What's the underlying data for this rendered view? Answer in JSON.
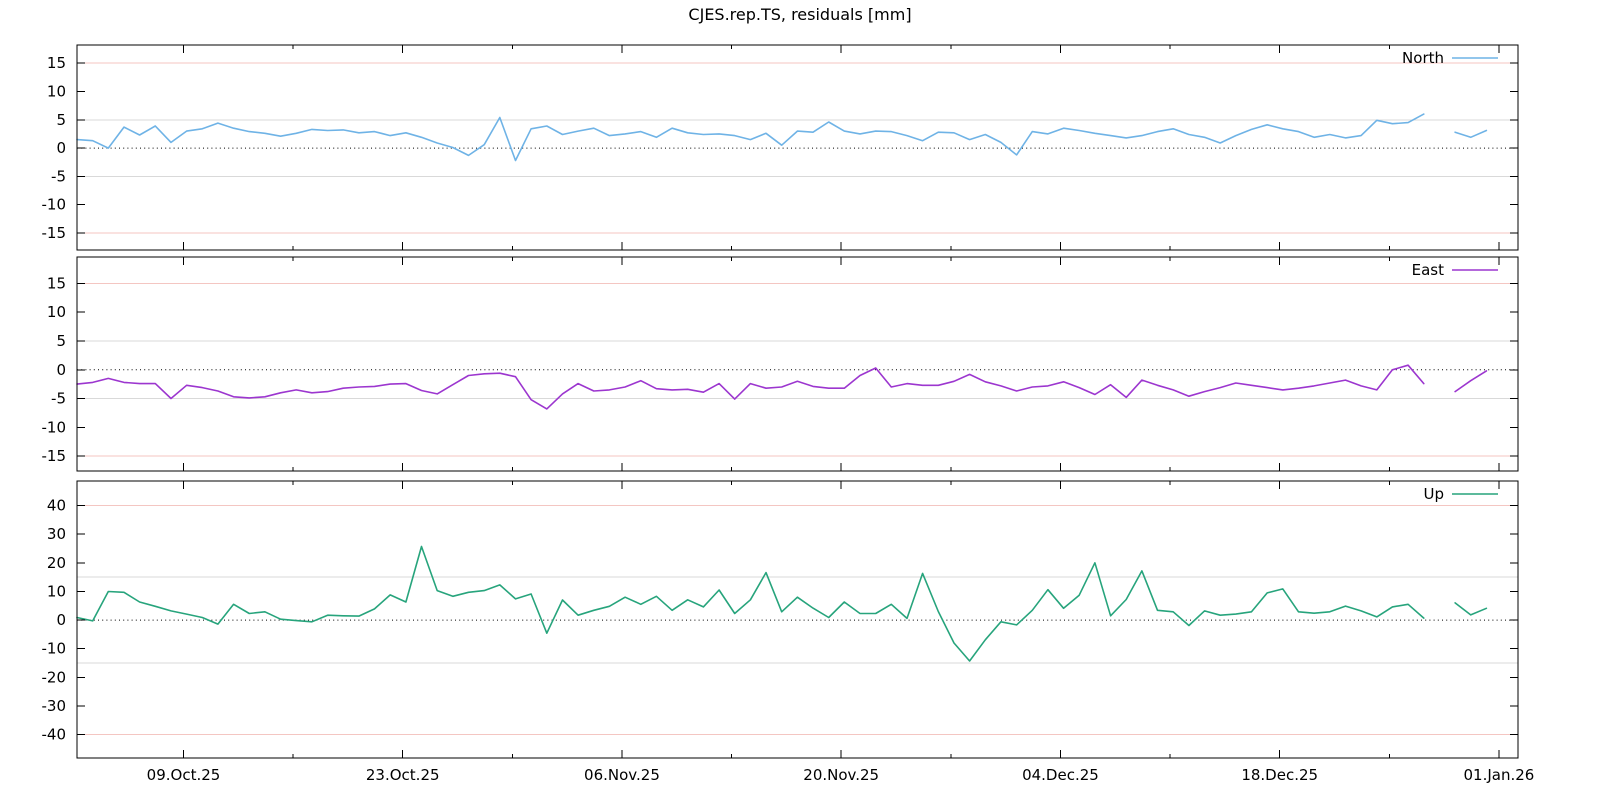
{
  "title": "CJES.rep.TS, residuals [mm]",
  "chart_data": {
    "type": "line",
    "title": "CJES.rep.TS, residuals [mm]",
    "xlabel": "",
    "ylabel": "residuals [mm]",
    "legend_position": "top-right-inside",
    "grid": "horizontal-only",
    "grid_colors": {
      "outer": "#f4c6c2",
      "inner": "#d9d9d9",
      "zero": "#000000"
    },
    "x_axis": {
      "tick_labels": [
        "09.Oct.25",
        "23.Oct.25",
        "06.Nov.25",
        "20.Nov.25",
        "04.Dec.25",
        "18.Dec.25",
        "01.Jan.26"
      ],
      "major_days": [
        6.8,
        20.8,
        34.8,
        48.8,
        62.8,
        76.8,
        90.8
      ],
      "minor_days": [
        13.8,
        27.8,
        41.8,
        55.8,
        69.8,
        83.8
      ],
      "sampling": "daily",
      "gap_day_index": 87
    },
    "panels": [
      {
        "name": "North",
        "color": "#6fb3e6",
        "ylim": [
          -18.0,
          18.2
        ],
        "yticks": [
          -15,
          -10,
          -5,
          0,
          5,
          10,
          15
        ],
        "grid_outer": 15,
        "grid_inner": 5,
        "values": [
          1.5,
          1.3,
          0.0,
          3.7,
          2.3,
          3.9,
          1.0,
          3.0,
          3.4,
          4.4,
          3.5,
          2.9,
          2.6,
          2.1,
          2.6,
          3.3,
          3.1,
          3.2,
          2.7,
          2.9,
          2.2,
          2.7,
          1.9,
          0.9,
          0.1,
          -1.3,
          0.6,
          5.4,
          -2.2,
          3.4,
          3.9,
          2.4,
          3.0,
          3.5,
          2.2,
          2.5,
          2.9,
          1.9,
          3.5,
          2.7,
          2.4,
          2.5,
          2.2,
          1.5,
          2.6,
          0.5,
          3.0,
          2.8,
          4.6,
          3.0,
          2.5,
          3.0,
          2.9,
          2.2,
          1.3,
          2.8,
          2.7,
          1.5,
          2.4,
          1.0,
          -1.2,
          2.9,
          2.5,
          3.5,
          3.1,
          2.6,
          2.2,
          1.8,
          2.2,
          2.9,
          3.4,
          2.4,
          1.9,
          0.9,
          2.2,
          3.3,
          4.1,
          3.4,
          2.9,
          1.9,
          2.4,
          1.8,
          2.2,
          4.9,
          4.3,
          4.5,
          6.0,
          null,
          2.8,
          1.9,
          3.1
        ]
      },
      {
        "name": "East",
        "color": "#9c36cf",
        "ylim": [
          -17.6,
          19.6
        ],
        "yticks": [
          -15,
          -10,
          -5,
          0,
          5,
          10,
          15
        ],
        "grid_outer": 15,
        "grid_inner": 5,
        "values": [
          -2.5,
          -2.2,
          -1.5,
          -2.2,
          -2.4,
          -2.4,
          -5.0,
          -2.7,
          -3.1,
          -3.7,
          -4.7,
          -4.9,
          -4.7,
          -4.0,
          -3.5,
          -4.0,
          -3.8,
          -3.2,
          -3.0,
          -2.9,
          -2.5,
          -2.4,
          -3.6,
          -4.2,
          -2.6,
          -1.0,
          -0.7,
          -0.6,
          -1.2,
          -5.2,
          -6.8,
          -4.2,
          -2.4,
          -3.7,
          -3.5,
          -3.0,
          -1.9,
          -3.3,
          -3.5,
          -3.4,
          -3.9,
          -2.4,
          -5.1,
          -2.4,
          -3.2,
          -3.0,
          -2.0,
          -2.9,
          -3.2,
          -3.2,
          -1.0,
          0.3,
          -3.0,
          -2.4,
          -2.7,
          -2.7,
          -2.0,
          -0.8,
          -2.1,
          -2.8,
          -3.7,
          -3.0,
          -2.8,
          -2.1,
          -3.1,
          -4.3,
          -2.6,
          -4.8,
          -1.8,
          -2.7,
          -3.5,
          -4.6,
          -3.8,
          -3.1,
          -2.3,
          -2.7,
          -3.1,
          -3.5,
          -3.2,
          -2.8,
          -2.3,
          -1.8,
          -2.8,
          -3.5,
          0.0,
          0.8,
          -2.4,
          null,
          -3.8,
          -1.9,
          -0.2
        ]
      },
      {
        "name": "Up",
        "color": "#27a47c",
        "ylim": [
          -48.2,
          48.6
        ],
        "yticks": [
          -40,
          -30,
          -20,
          -10,
          0,
          10,
          20,
          30,
          40
        ],
        "grid_outer": 40,
        "grid_inner": 15,
        "values": [
          0.9,
          -0.3,
          10.0,
          9.7,
          6.3,
          4.8,
          3.2,
          2.1,
          0.9,
          -1.4,
          5.5,
          2.3,
          2.9,
          0.3,
          -0.2,
          -0.6,
          1.7,
          1.5,
          1.4,
          3.9,
          8.8,
          6.3,
          25.7,
          10.3,
          8.3,
          9.7,
          10.3,
          12.3,
          7.4,
          9.1,
          -4.6,
          7.0,
          1.7,
          3.4,
          4.8,
          8.0,
          5.5,
          8.3,
          3.4,
          7.1,
          4.6,
          10.5,
          2.3,
          7.1,
          16.6,
          2.9,
          8.0,
          4.2,
          0.9,
          6.3,
          2.3,
          2.3,
          5.5,
          0.6,
          16.3,
          3.0,
          -8.0,
          -14.3,
          -6.9,
          -0.6,
          -1.7,
          3.4,
          10.6,
          4.1,
          8.7,
          20.0,
          1.5,
          7.2,
          17.2,
          3.4,
          2.9,
          -1.9,
          3.2,
          1.7,
          2.1,
          2.9,
          9.5,
          10.9,
          2.9,
          2.4,
          2.9,
          4.9,
          3.2,
          1.1,
          4.6,
          5.5,
          0.7,
          null,
          6.0,
          1.8,
          4.1
        ]
      }
    ]
  }
}
